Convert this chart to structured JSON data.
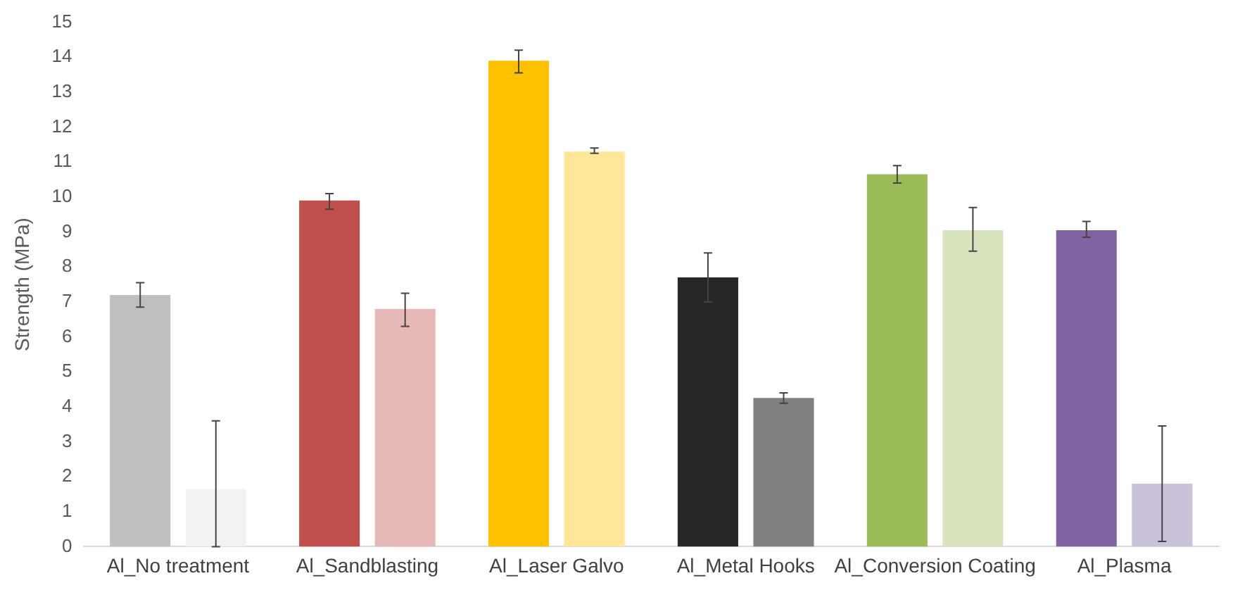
{
  "chart_data": {
    "type": "bar",
    "ylabel": "Strength (MPa)",
    "categories": [
      "Al_No treatment",
      "Al_Sandblasting",
      "Al_Laser Galvo",
      "Al_Metal Hooks",
      "Al_Conversion Coating",
      "Al_Plasma"
    ],
    "series": [
      {
        "colors": [
          "#bfbfbf",
          "#c0504d",
          "#ffc000",
          "#262626",
          "#9bbb59",
          "#8064a2"
        ],
        "values": [
          7.2,
          9.9,
          13.9,
          7.7,
          10.65,
          9.05
        ],
        "errors": [
          [
            6.85,
            7.55
          ],
          [
            9.65,
            10.1
          ],
          [
            13.55,
            14.2
          ],
          [
            7.0,
            8.4
          ],
          [
            10.4,
            10.9
          ],
          [
            8.85,
            9.3
          ]
        ]
      },
      {
        "colors": [
          "#f2f2f2",
          "#e6b9b8",
          "#ffe699",
          "#7f7f7f",
          "#d7e4bd",
          "#ccc1da"
        ],
        "values": [
          1.65,
          6.8,
          11.3,
          4.25,
          9.05,
          1.8
        ],
        "errors": [
          [
            0,
            3.6
          ],
          [
            6.3,
            7.25
          ],
          [
            11.25,
            11.4
          ],
          [
            4.1,
            4.4
          ],
          [
            8.45,
            9.7
          ],
          [
            0.15,
            3.45
          ]
        ]
      }
    ],
    "ylim": [
      0,
      15
    ],
    "yticks": [
      0,
      1,
      2,
      3,
      4,
      5,
      6,
      7,
      8,
      9,
      10,
      11,
      12,
      13,
      14,
      15
    ],
    "grid": false,
    "legend": false
  }
}
